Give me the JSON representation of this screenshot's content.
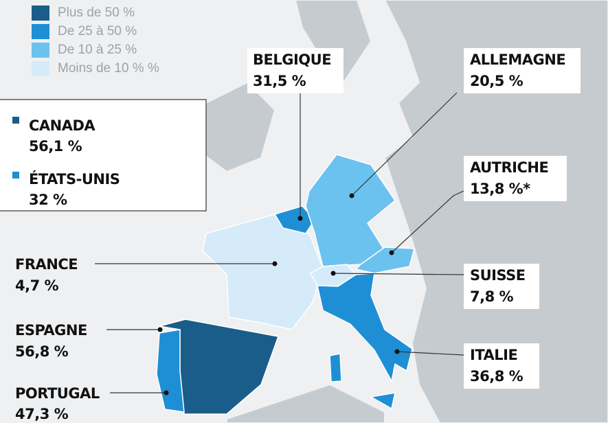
{
  "legend": {
    "items": [
      "Plus de 50 %",
      "De 25 à 50 %",
      "De 10 à 25 %",
      "Moins de 10 % %"
    ]
  },
  "north_america": [
    {
      "name": "CANADA",
      "value": "56,1 %"
    },
    {
      "name": "ÉTATS-UNIS",
      "value": "32 %"
    }
  ],
  "countries": [
    {
      "name": "BELGIQUE",
      "value": "31,5 %"
    },
    {
      "name": "ALLEMAGNE",
      "value": "20,5 %"
    },
    {
      "name": "AUTRICHE",
      "value": "13,8 %*"
    },
    {
      "name": "SUISSE",
      "value": "7,8 %"
    },
    {
      "name": "ITALIE",
      "value": "36,8 %"
    },
    {
      "name": "FRANCE",
      "value": "4,7 %"
    },
    {
      "name": "ESPAGNE",
      "value": "56,8 %"
    },
    {
      "name": "PORTUGAL",
      "value": "47,3 %"
    }
  ]
}
